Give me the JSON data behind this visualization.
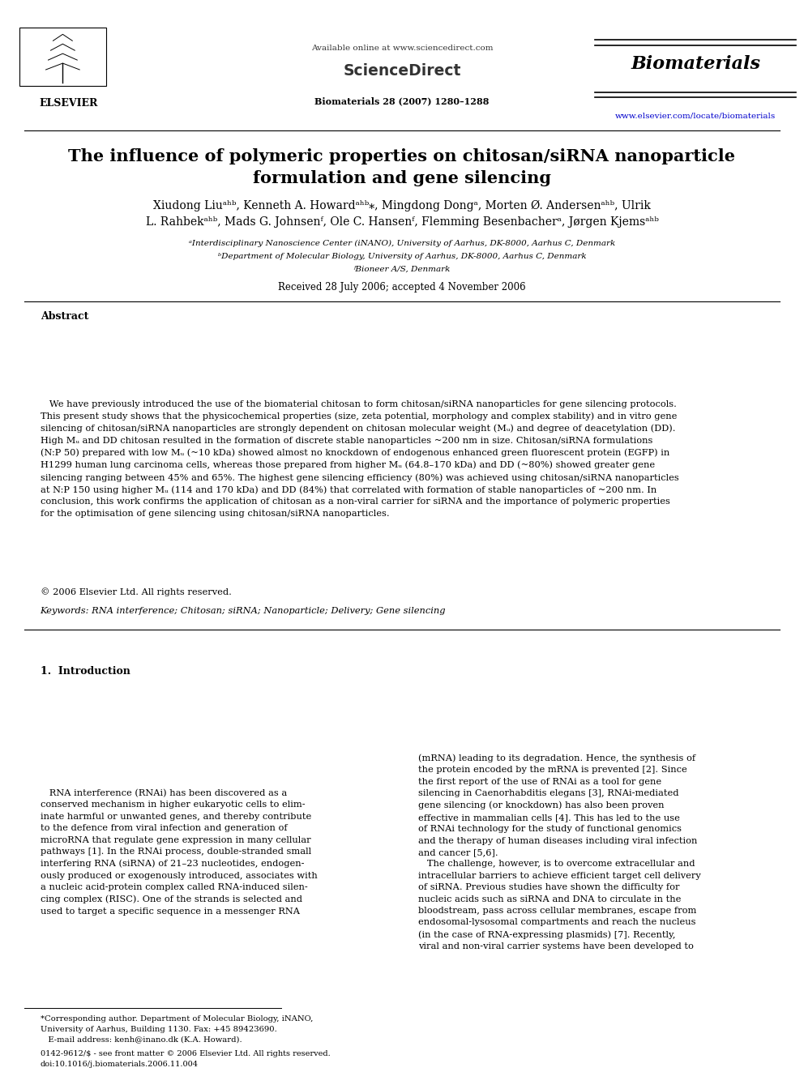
{
  "bg_color": "#ffffff",
  "top_margin_text": "Available online at www.sciencedirect.com",
  "journal_name": "Biomaterials",
  "journal_issue": "Biomaterials 28 (2007) 1280–1288",
  "journal_url": "www.elsevier.com/locate/biomaterials",
  "title_line1": "The influence of polymeric properties on chitosan/siRNA nanoparticle",
  "title_line2": "formulation and gene silencing",
  "authors": "Xiudong Liuᵃʰᵇ, Kenneth A. Howardᵃʰᵇ⁎, Mingdong Dongᵃ, Morten Ø. Andersenᵃʰᵇ, Ulrik",
  "authors2": "L. Rahbekᵃʰᵇ, Mads G. Johnsenᶠ, Ole C. Hansenᶠ, Flemming Besenbacherᵃ, Jørgen Kjemsᵃʰᵇ",
  "affil1": "ᵃInterdisciplinary Nanoscience Center (iNANO), University of Aarhus, DK-8000, Aarhus C, Denmark",
  "affil2": "ᵇDepartment of Molecular Biology, University of Aarhus, DK-8000, Aarhus C, Denmark",
  "affil3": "ᶠBioneer A/S, Denmark",
  "received": "Received 28 July 2006; accepted 4 November 2006",
  "abstract_title": "Abstract",
  "abstract_text": "   We have previously introduced the use of the biomaterial chitosan to form chitosan/siRNA nanoparticles for gene silencing protocols.\nThis present study shows that the physicochemical properties (size, zeta potential, morphology and complex stability) and in vitro gene\nsilencing of chitosan/siRNA nanoparticles are strongly dependent on chitosan molecular weight (Mᵤ) and degree of deacetylation (DD).\nHigh Mᵤ and DD chitosan resulted in the formation of discrete stable nanoparticles ~200 nm in size. Chitosan/siRNA formulations\n(N:P 50) prepared with low Mᵤ (~10 kDa) showed almost no knockdown of endogenous enhanced green fluorescent protein (EGFP) in\nH1299 human lung carcinoma cells, whereas those prepared from higher Mᵤ (64.8–170 kDa) and DD (~80%) showed greater gene\nsilencing ranging between 45% and 65%. The highest gene silencing efficiency (80%) was achieved using chitosan/siRNA nanoparticles\nat N:P 150 using higher Mᵤ (114 and 170 kDa) and DD (84%) that correlated with formation of stable nanoparticles of ~200 nm. In\nconclusion, this work confirms the application of chitosan as a non-viral carrier for siRNA and the importance of polymeric properties\nfor the optimisation of gene silencing using chitosan/siRNA nanoparticles.",
  "copyright": "© 2006 Elsevier Ltd. All rights reserved.",
  "keywords": "Keywords: RNA interference; Chitosan; siRNA; Nanoparticle; Delivery; Gene silencing",
  "section1_title": "1.  Introduction",
  "intro_left": "   RNA interference (RNAi) has been discovered as a\nconserved mechanism in higher eukaryotic cells to elim-\ninate harmful or unwanted genes, and thereby contribute\nto the defence from viral infection and generation of\nmicroRNA that regulate gene expression in many cellular\npathways [1]. In the RNAi process, double-stranded small\ninterfering RNA (siRNA) of 21–23 nucleotides, endogen-\nously produced or exogenously introduced, associates with\na nucleic acid-protein complex called RNA-induced silen-\ncing complex (RISC). One of the strands is selected and\nused to target a specific sequence in a messenger RNA",
  "intro_right": "(mRNA) leading to its degradation. Hence, the synthesis of\nthe protein encoded by the mRNA is prevented [2]. Since\nthe first report of the use of RNAi as a tool for gene\nsilencing in Caenorhabditis elegans [3], RNAi-mediated\ngene silencing (or knockdown) has also been proven\neffective in mammalian cells [4]. This has led to the use\nof RNAi technology for the study of functional genomics\nand the therapy of human diseases including viral infection\nand cancer [5,6].\n   The challenge, however, is to overcome extracellular and\nintracellular barriers to achieve efficient target cell delivery\nof siRNA. Previous studies have shown the difficulty for\nnucleic acids such as siRNA and DNA to circulate in the\nbloodstream, pass across cellular membranes, escape from\nendosomal-lysosomal compartments and reach the nucleus\n(in the case of RNA-expressing plasmids) [7]. Recently,\nviral and non-viral carrier systems have been developed to",
  "footnote": "*Corresponding author. Department of Molecular Biology, iNANO,\nUniversity of Aarhus, Building 1130. Fax: +45 89423690.\n   E-mail address: kenh@inano.dk (K.A. Howard).",
  "bottom_text": "0142-9612/$ - see front matter © 2006 Elsevier Ltd. All rights reserved.\ndoi:10.1016/j.biomaterials.2006.11.004"
}
